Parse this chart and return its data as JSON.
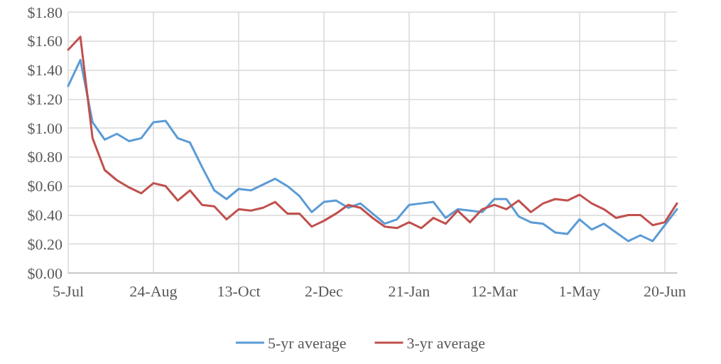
{
  "chart_data": {
    "type": "line",
    "categories": [
      "5-Jul",
      null,
      null,
      null,
      null,
      null,
      null,
      "24-Aug",
      null,
      null,
      null,
      null,
      null,
      null,
      "13-Oct",
      null,
      null,
      null,
      null,
      null,
      null,
      "2-Dec",
      null,
      null,
      null,
      null,
      null,
      null,
      "21-Jan",
      null,
      null,
      null,
      null,
      null,
      null,
      "12-Mar",
      null,
      null,
      null,
      null,
      null,
      null,
      "1-May",
      null,
      null,
      null,
      null,
      null,
      null,
      "20-Jun",
      null
    ],
    "series": [
      {
        "name": "5-yr average",
        "color": "#5b9bd5",
        "values": [
          1.29,
          1.47,
          1.04,
          0.92,
          0.96,
          0.91,
          0.93,
          1.04,
          1.05,
          0.93,
          0.9,
          0.73,
          0.57,
          0.51,
          0.58,
          0.57,
          0.61,
          0.65,
          0.6,
          0.53,
          0.42,
          0.49,
          0.5,
          0.45,
          0.48,
          0.41,
          0.34,
          0.37,
          0.47,
          0.48,
          0.49,
          0.38,
          0.44,
          0.43,
          0.42,
          0.51,
          0.51,
          0.39,
          0.35,
          0.34,
          0.28,
          0.27,
          0.37,
          0.3,
          0.34,
          0.28,
          0.22,
          0.26,
          0.22,
          0.33,
          0.44
        ]
      },
      {
        "name": "3-yr average",
        "color": "#c0504d",
        "values": [
          1.54,
          1.63,
          0.93,
          0.71,
          0.64,
          0.59,
          0.55,
          0.62,
          0.6,
          0.5,
          0.57,
          0.47,
          0.46,
          0.37,
          0.44,
          0.43,
          0.45,
          0.49,
          0.41,
          0.41,
          0.32,
          0.36,
          0.41,
          0.47,
          0.45,
          0.38,
          0.32,
          0.31,
          0.35,
          0.31,
          0.38,
          0.34,
          0.43,
          0.35,
          0.44,
          0.47,
          0.44,
          0.5,
          0.42,
          0.48,
          0.51,
          0.5,
          0.54,
          0.48,
          0.44,
          0.38,
          0.4,
          0.4,
          0.33,
          0.35,
          0.48
        ]
      }
    ],
    "ylim": [
      0,
      1.8
    ],
    "yticks": [
      {
        "value": 0,
        "label": "$0.00"
      },
      {
        "value": 0.2,
        "label": "$0.20"
      },
      {
        "value": 0.4,
        "label": "$0.40"
      },
      {
        "value": 0.6,
        "label": "$0.60"
      },
      {
        "value": 0.8,
        "label": "$0.80"
      },
      {
        "value": 1.0,
        "label": "$1.00"
      },
      {
        "value": 1.2,
        "label": "$1.20"
      },
      {
        "value": 1.4,
        "label": "$1.40"
      },
      {
        "value": 1.6,
        "label": "$1.60"
      },
      {
        "value": 1.8,
        "label": "$1.80"
      }
    ],
    "grid": true,
    "legend": "bottom",
    "marker": "none",
    "line_style": "solid"
  }
}
